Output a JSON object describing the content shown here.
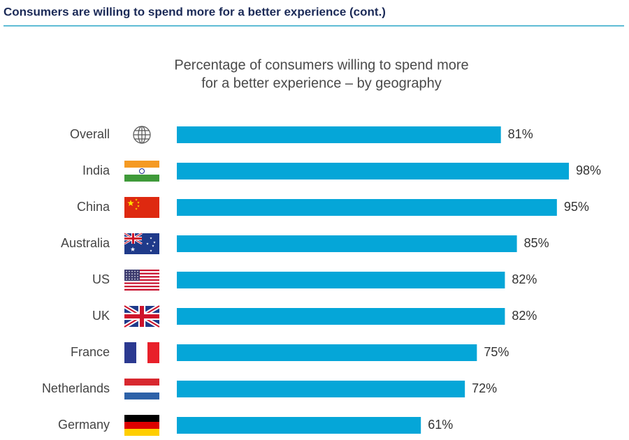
{
  "header": {
    "title": "Consumers are willing to spend more for a better experience (cont.)"
  },
  "chart_data": {
    "type": "bar",
    "orientation": "horizontal",
    "title": [
      "Percentage of consumers willing to spend more",
      "for a better experience – by geography"
    ],
    "categories": [
      "Overall",
      "India",
      "China",
      "Australia",
      "US",
      "UK",
      "France",
      "Netherlands",
      "Germany"
    ],
    "values": [
      81,
      98,
      95,
      85,
      82,
      82,
      75,
      72,
      61
    ],
    "value_labels": [
      "81%",
      "98%",
      "95%",
      "85%",
      "82%",
      "82%",
      "75%",
      "72%",
      "61%"
    ],
    "color": "#05a6d8"
  }
}
